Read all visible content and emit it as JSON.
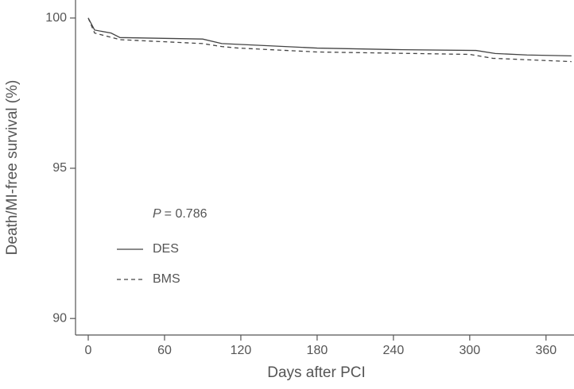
{
  "chart_data": {
    "type": "line",
    "x_label": "Days after PCI",
    "y_label": "Death/MI-free survival (%)",
    "annotation_var": "P",
    "annotation_text": "= 0.786",
    "xlim": [
      -10,
      382
    ],
    "xticks": [
      0,
      60,
      120,
      180,
      240,
      300,
      360
    ],
    "ylim": [
      89.45,
      100.6
    ],
    "yticks": [
      90,
      95,
      100
    ],
    "series": [
      {
        "name": "DES",
        "color": "#444444",
        "dash": false,
        "x": [
          0,
          5,
          18,
          25,
          90,
          105,
          140,
          180,
          240,
          305,
          320,
          345,
          380
        ],
        "values": [
          100,
          99.6,
          99.5,
          99.35,
          99.3,
          99.15,
          99.08,
          99.0,
          98.95,
          98.92,
          98.82,
          98.77,
          98.74
        ]
      },
      {
        "name": "BMS",
        "color": "#444444",
        "dash": true,
        "x": [
          0,
          5,
          25,
          90,
          105,
          118,
          180,
          300,
          318,
          380
        ],
        "values": [
          100,
          99.5,
          99.28,
          99.15,
          99.05,
          99.0,
          98.87,
          98.79,
          98.66,
          98.55
        ]
      }
    ]
  }
}
